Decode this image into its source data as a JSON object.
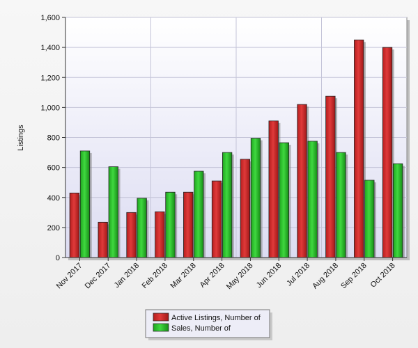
{
  "chart_data": {
    "type": "bar",
    "title": "",
    "xlabel": "",
    "ylabel": "Listings",
    "ylim": [
      0,
      1600
    ],
    "yticks": [
      0,
      200,
      400,
      600,
      800,
      1000,
      1200,
      1400,
      1600
    ],
    "ytick_labels": [
      "0",
      "200",
      "400",
      "600",
      "800",
      "1,000",
      "1,200",
      "1,400",
      "1,600"
    ],
    "categories": [
      "Nov 2017",
      "Dec 2017",
      "Jan 2018",
      "Feb 2018",
      "Mar 2018",
      "Apr 2018",
      "May 2018",
      "Jun 2018",
      "Jul 2018",
      "Aug 2018",
      "Sep 2018",
      "Oct 2018"
    ],
    "series": [
      {
        "name": "Active Listings, Number of",
        "color": "#d12a2a",
        "values": [
          430,
          235,
          300,
          305,
          435,
          510,
          655,
          910,
          1020,
          1075,
          1450,
          1400
        ]
      },
      {
        "name": "Sales, Number of",
        "color": "#2fc72f",
        "values": [
          710,
          605,
          395,
          435,
          575,
          700,
          795,
          765,
          775,
          700,
          515,
          625
        ]
      }
    ],
    "grid": true,
    "legend_position": "bottom-center"
  }
}
